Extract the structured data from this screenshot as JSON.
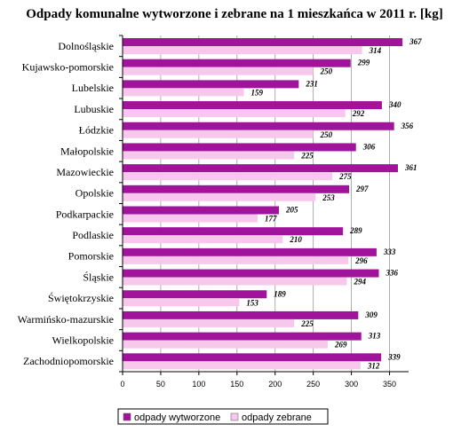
{
  "chart_data": {
    "type": "bar",
    "orientation": "horizontal",
    "title": "Odpady komunalne wytworzone i zebrane na 1 mieszkańca w 2011 r. [kg]",
    "categories": [
      "Dolnośląskie",
      "Kujawsko-pomorskie",
      "Lubelskie",
      "Lubuskie",
      "Łódzkie",
      "Małopolskie",
      "Mazowieckie",
      "Opolskie",
      "Podkarpackie",
      "Podlaskie",
      "Pomorskie",
      "Śląskie",
      "Świętokrzyskie",
      "Warmińsko-mazurskie",
      "Wielkopolskie",
      "Zachodniopomorskie"
    ],
    "series": [
      {
        "name": "odpady wytworzone",
        "color": "#a0149c",
        "values": [
          367,
          299,
          231,
          340,
          356,
          306,
          361,
          297,
          205,
          289,
          333,
          336,
          189,
          309,
          313,
          339
        ]
      },
      {
        "name": "odpady zebrane",
        "color": "#f8c8ec",
        "values": [
          314,
          250,
          159,
          292,
          250,
          225,
          275,
          253,
          177,
          210,
          296,
          294,
          153,
          225,
          269,
          312
        ]
      }
    ],
    "xlim": [
      0,
      375
    ],
    "xticks": [
      0,
      50,
      100,
      150,
      200,
      250,
      300,
      350
    ],
    "grid": true,
    "legend": "bottom"
  }
}
